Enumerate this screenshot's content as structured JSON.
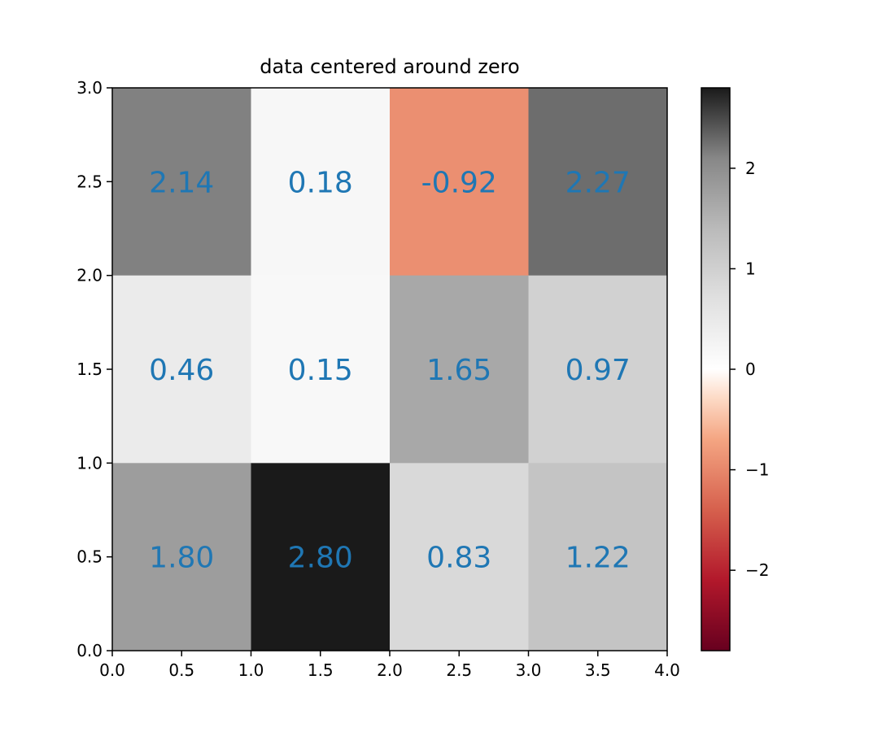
{
  "chart_data": {
    "type": "heatmap",
    "title": "data centered around zero",
    "xlim": [
      0.0,
      4.0
    ],
    "ylim": [
      0.0,
      3.0
    ],
    "x_ticks": [
      "0.0",
      "0.5",
      "1.0",
      "1.5",
      "2.0",
      "2.5",
      "3.0",
      "3.5",
      "4.0"
    ],
    "y_ticks": [
      "0.0",
      "0.5",
      "1.0",
      "1.5",
      "2.0",
      "2.5",
      "3.0"
    ],
    "rows": [
      {
        "y_range": [
          2.0,
          3.0
        ],
        "values": [
          2.14,
          0.18,
          -0.92,
          2.27
        ],
        "labels": [
          "2.14",
          "0.18",
          "-0.92",
          "2.27"
        ]
      },
      {
        "y_range": [
          1.0,
          2.0
        ],
        "values": [
          0.46,
          0.15,
          1.65,
          0.97
        ],
        "labels": [
          "0.46",
          "0.15",
          "1.65",
          "0.97"
        ]
      },
      {
        "y_range": [
          0.0,
          1.0
        ],
        "values": [
          1.8,
          2.8,
          0.83,
          1.22
        ],
        "labels": [
          "1.80",
          "2.80",
          "0.83",
          "1.22"
        ]
      }
    ],
    "colormap": {
      "name": "diverging red-white-gray",
      "vmin": -2.8,
      "vmax": 2.8,
      "negative_end": "#67001f",
      "center": "#ffffff",
      "positive_end": "#1a1a1a"
    },
    "colorbar": {
      "ticks": [
        "−2",
        "−1",
        "0",
        "1",
        "2"
      ],
      "tick_values": [
        -2,
        -1,
        0,
        1,
        2
      ]
    },
    "label_color": "#1f77b4",
    "grid": false,
    "legend": "none"
  }
}
